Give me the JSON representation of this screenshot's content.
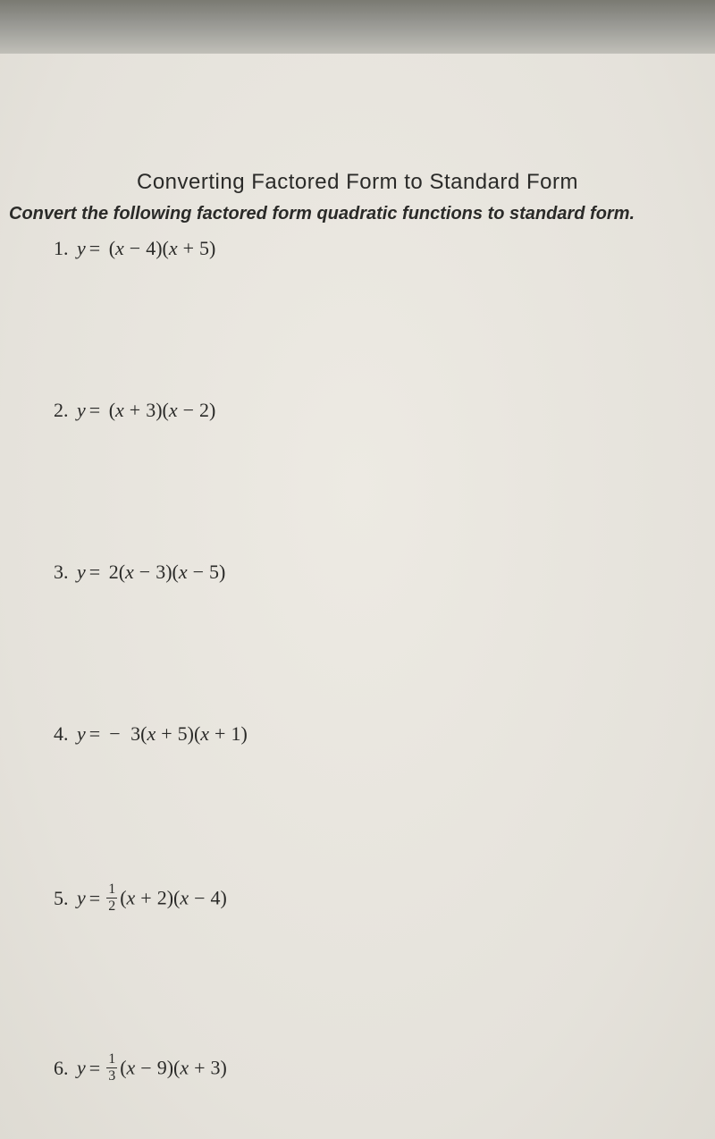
{
  "worksheet": {
    "title": "Converting Factored Form to Standard Form",
    "instructions": "Convert the following factored form quadratic functions to standard form.",
    "background_color": "#ebe9e2",
    "text_color": "#2a2a28",
    "title_fontsize": 24,
    "instructions_fontsize": 20,
    "problem_fontsize": 22,
    "title_font": "Comic Sans MS",
    "problem_font": "Times New Roman"
  },
  "problems": [
    {
      "number": "1.",
      "lhs": "y",
      "coefficient": "",
      "coefficient_type": "none",
      "factor1_sign": "−",
      "factor1_val": "4",
      "factor2_sign": "+",
      "factor2_val": "5"
    },
    {
      "number": "2.",
      "lhs": "y",
      "coefficient": "",
      "coefficient_type": "none",
      "factor1_sign": "+",
      "factor1_val": "3",
      "factor2_sign": "−",
      "factor2_val": "2"
    },
    {
      "number": "3.",
      "lhs": "y",
      "coefficient": "2",
      "coefficient_type": "int",
      "factor1_sign": "−",
      "factor1_val": "3",
      "factor2_sign": "−",
      "factor2_val": "5"
    },
    {
      "number": "4.",
      "lhs": "y",
      "coefficient": "3",
      "coefficient_type": "neg_int",
      "factor1_sign": "+",
      "factor1_val": "5",
      "factor2_sign": "+",
      "factor2_val": "1"
    },
    {
      "number": "5.",
      "lhs": "y",
      "coefficient_num": "1",
      "coefficient_den": "2",
      "coefficient_type": "frac",
      "factor1_sign": "+",
      "factor1_val": "2",
      "factor2_sign": "−",
      "factor2_val": "4"
    },
    {
      "number": "6.",
      "lhs": "y",
      "coefficient_num": "1",
      "coefficient_den": "3",
      "coefficient_type": "frac",
      "factor1_sign": "−",
      "factor1_val": "9",
      "factor2_sign": "+",
      "factor2_val": "3"
    }
  ]
}
